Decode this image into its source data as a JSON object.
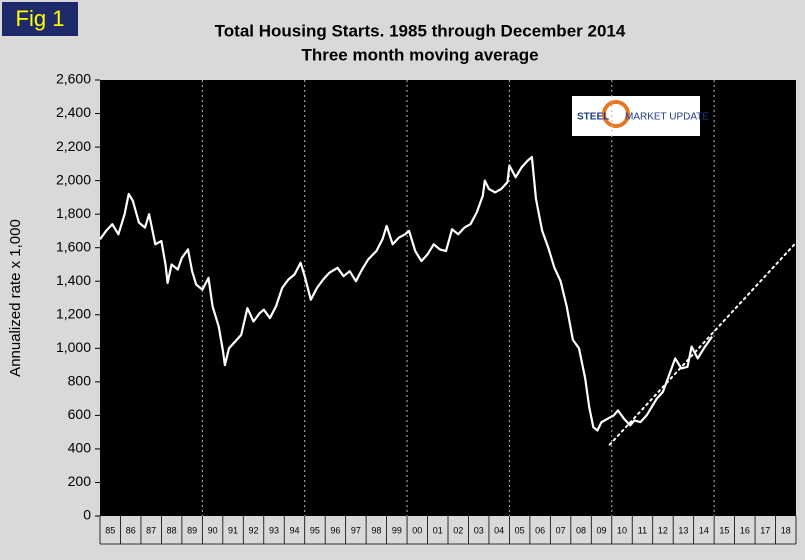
{
  "chart_data": {
    "type": "line",
    "figure_label": "Fig 1",
    "title": "Total Housing Starts. 1985 through December 2014",
    "subtitle": "Three month moving average",
    "y_label": "Annualized rate x 1,000",
    "logo": {
      "part1": "STEEL",
      "part2": "MARKET UPDATE"
    },
    "xlim": [
      1985,
      2019
    ],
    "ylim": [
      0,
      2600
    ],
    "yticks": [
      0,
      200,
      400,
      600,
      800,
      {
        "value": 1000,
        "label": "1,000"
      },
      {
        "value": 1200,
        "label": "1,200"
      },
      {
        "value": 1400,
        "label": "1,400"
      },
      {
        "value": 1600,
        "label": "1,600"
      },
      {
        "value": 1800,
        "label": "1,800"
      },
      {
        "value": 2000,
        "label": "2,000"
      },
      {
        "value": 2200,
        "label": "2,200"
      },
      {
        "value": 2400,
        "label": "2,400"
      },
      {
        "value": 2600,
        "label": "2,600"
      }
    ],
    "xticks": [
      {
        "value": 1985,
        "label": "85"
      },
      {
        "value": 1986,
        "label": "86"
      },
      {
        "value": 1987,
        "label": "87"
      },
      {
        "value": 1988,
        "label": "88"
      },
      {
        "value": 1989,
        "label": "89"
      },
      {
        "value": 1990,
        "label": "90"
      },
      {
        "value": 1991,
        "label": "91"
      },
      {
        "value": 1992,
        "label": "92"
      },
      {
        "value": 1993,
        "label": "93"
      },
      {
        "value": 1994,
        "label": "94"
      },
      {
        "value": 1995,
        "label": "95"
      },
      {
        "value": 1996,
        "label": "96"
      },
      {
        "value": 1997,
        "label": "97"
      },
      {
        "value": 1998,
        "label": "98"
      },
      {
        "value": 1999,
        "label": "99"
      },
      {
        "value": 2000,
        "label": "00"
      },
      {
        "value": 2001,
        "label": "01"
      },
      {
        "value": 2002,
        "label": "02"
      },
      {
        "value": 2003,
        "label": "03"
      },
      {
        "value": 2004,
        "label": "04"
      },
      {
        "value": 2005,
        "label": "05"
      },
      {
        "value": 2006,
        "label": "06"
      },
      {
        "value": 2007,
        "label": "07"
      },
      {
        "value": 2008,
        "label": "08"
      },
      {
        "value": 2009,
        "label": "09"
      },
      {
        "value": 2010,
        "label": "10"
      },
      {
        "value": 2011,
        "label": "11"
      },
      {
        "value": 2012,
        "label": "12"
      },
      {
        "value": 2013,
        "label": "13"
      },
      {
        "value": 2014,
        "label": "14"
      },
      {
        "value": 2015,
        "label": "15"
      },
      {
        "value": 2016,
        "label": "16"
      },
      {
        "value": 2017,
        "label": "17"
      },
      {
        "value": 2018,
        "label": "18"
      }
    ],
    "x_grid": [
      1990,
      1995,
      2000,
      2005,
      2010,
      2015
    ],
    "background": "#000000",
    "series": [
      {
        "color": "#ffffff",
        "style": "solid",
        "x": [
          1985.0,
          1985.3,
          1985.6,
          1985.9,
          1986.2,
          1986.4,
          1986.6,
          1986.9,
          1987.2,
          1987.4,
          1987.7,
          1988.0,
          1988.2,
          1988.3,
          1988.5,
          1988.8,
          1989.0,
          1989.3,
          1989.5,
          1989.7,
          1990.0,
          1990.3,
          1990.5,
          1990.8,
          1991.0,
          1991.1,
          1991.3,
          1991.6,
          1991.9,
          1992.2,
          1992.5,
          1992.8,
          1993.0,
          1993.3,
          1993.6,
          1993.9,
          1994.2,
          1994.5,
          1994.8,
          1995.0,
          1995.3,
          1995.6,
          1995.9,
          1996.2,
          1996.6,
          1996.9,
          1997.2,
          1997.5,
          1997.8,
          1998.1,
          1998.5,
          1998.8,
          1999.0,
          1999.3,
          1999.6,
          1999.9,
          2000.1,
          2000.4,
          2000.7,
          2001.0,
          2001.3,
          2001.6,
          2001.9,
          2002.2,
          2002.5,
          2002.8,
          2003.1,
          2003.4,
          2003.7,
          2003.8,
          2004.0,
          2004.3,
          2004.6,
          2004.9,
          2005.0,
          2005.3,
          2005.6,
          2005.9,
          2006.1,
          2006.3,
          2006.6,
          2006.9,
          2007.2,
          2007.5,
          2007.8,
          2008.1,
          2008.4,
          2008.7,
          2008.9,
          2009.1,
          2009.3,
          2009.5,
          2009.8,
          2010.1,
          2010.3,
          2010.6,
          2010.9,
          2011.1,
          2011.4,
          2011.7,
          2011.9,
          2012.2,
          2012.5,
          2012.8,
          2013.1,
          2013.4,
          2013.7,
          2013.9,
          2014.2,
          2014.5,
          2014.9
        ],
        "values": [
          1650,
          1700,
          1740,
          1680,
          1800,
          1920,
          1880,
          1750,
          1720,
          1800,
          1620,
          1640,
          1500,
          1390,
          1500,
          1470,
          1540,
          1590,
          1460,
          1380,
          1350,
          1420,
          1250,
          1130,
          990,
          900,
          1000,
          1040,
          1080,
          1240,
          1160,
          1210,
          1230,
          1180,
          1250,
          1360,
          1410,
          1440,
          1510,
          1430,
          1290,
          1360,
          1410,
          1450,
          1480,
          1430,
          1460,
          1400,
          1470,
          1530,
          1580,
          1650,
          1730,
          1620,
          1660,
          1680,
          1700,
          1580,
          1520,
          1560,
          1620,
          1590,
          1580,
          1710,
          1680,
          1720,
          1740,
          1810,
          1910,
          2000,
          1950,
          1930,
          1950,
          1990,
          2090,
          2020,
          2080,
          2120,
          2140,
          1890,
          1700,
          1600,
          1480,
          1400,
          1250,
          1050,
          1000,
          820,
          650,
          530,
          510,
          560,
          580,
          600,
          630,
          580,
          540,
          570,
          560,
          600,
          640,
          700,
          740,
          840,
          940,
          880,
          890,
          1010,
          940,
          1000,
          1070
        ]
      },
      {
        "color": "#ffffff",
        "style": "dotted",
        "x": [
          2009.9,
          2019
        ],
        "values": [
          425,
          1630
        ]
      }
    ]
  }
}
